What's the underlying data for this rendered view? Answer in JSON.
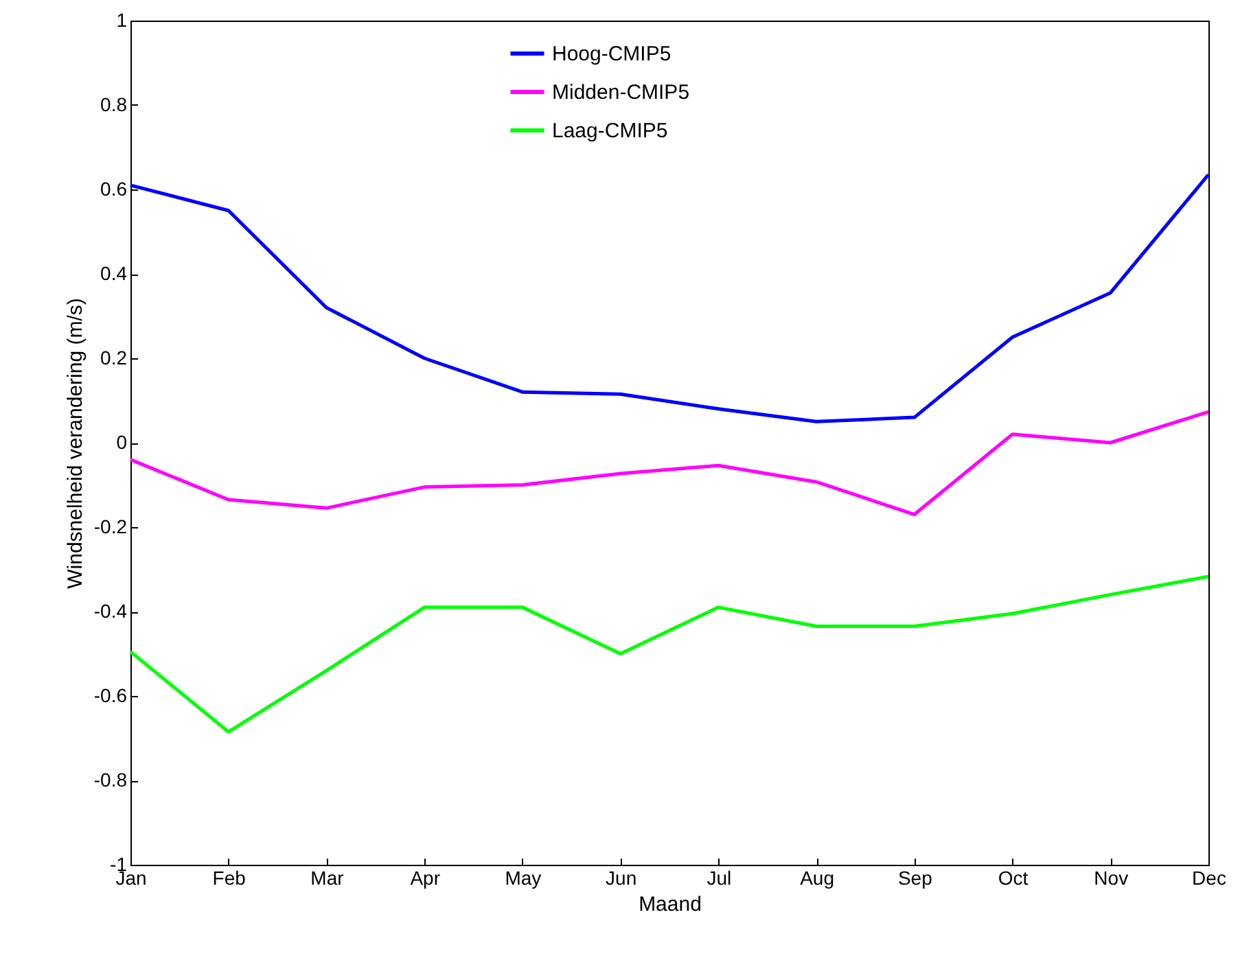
{
  "chart_data": {
    "type": "line",
    "xlabel": "Maand",
    "ylabel": "Windsnelheid verandering (m/s)",
    "categories": [
      "Jan",
      "Feb",
      "Mar",
      "Apr",
      "May",
      "Jun",
      "Jul",
      "Aug",
      "Sep",
      "Oct",
      "Nov",
      "Dec"
    ],
    "ylim": [
      -1,
      1
    ],
    "yticks": [
      -1,
      -0.8,
      -0.6,
      -0.4,
      -0.2,
      0,
      0.2,
      0.4,
      0.6,
      0.8,
      1
    ],
    "legend": "top",
    "grid": false,
    "marker": "none",
    "line_style": "solid",
    "series": [
      {
        "name": "Hoog-CMIP5",
        "color": "#0000ff",
        "values": [
          0.61,
          0.55,
          0.32,
          0.2,
          0.12,
          0.115,
          0.08,
          0.05,
          0.06,
          0.25,
          0.355,
          0.635
        ]
      },
      {
        "name": "Midden-CMIP5",
        "color": "#ff00ff",
        "values": [
          -0.04,
          -0.135,
          -0.155,
          -0.105,
          -0.1,
          -0.073,
          -0.054,
          -0.093,
          -0.17,
          0.02,
          0,
          0.073
        ]
      },
      {
        "name": "Laag-CMIP5",
        "color": "#00ff00",
        "values": [
          -0.495,
          -0.685,
          -0.54,
          -0.39,
          -0.39,
          -0.5,
          -0.39,
          -0.435,
          -0.435,
          -0.405,
          -0.36,
          -0.317
        ]
      }
    ]
  }
}
